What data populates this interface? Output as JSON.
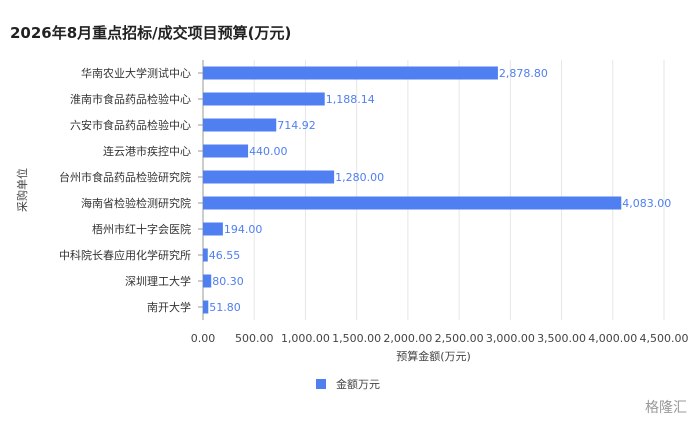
{
  "chart_data": {
    "type": "bar",
    "orientation": "horizontal",
    "title": "2026年8月重点招标/成交项目预算(万元)",
    "xlabel": "预算金额(万元)",
    "ylabel": "采购单位",
    "categories": [
      "华南农业大学测试中心",
      "淮南市食品药品检验中心",
      "六安市食品药品检验中心",
      "连云港市疾控中心",
      "台州市食品药品检验研究院",
      "海南省检验检测研究院",
      "梧州市红十字会医院",
      "中科院长春应用化学研究所",
      "深圳理工大学",
      "南开大学"
    ],
    "series": [
      {
        "name": "金额万元",
        "values": [
          2878.8,
          1188.14,
          714.92,
          440.0,
          1280.0,
          4083.0,
          194.0,
          46.55,
          80.3,
          51.8
        ],
        "labels": [
          "2,878.80",
          "1,188.14",
          "714.92",
          "440.00",
          "1,280.00",
          "4,083.00",
          "194.00",
          "46.55",
          "80.30",
          "51.80"
        ]
      }
    ],
    "xlim": [
      0,
      4500
    ],
    "xticks": [
      0,
      500,
      1000,
      1500,
      2000,
      2500,
      3000,
      3500,
      4000,
      4500
    ],
    "xtick_labels": [
      "0.00",
      "500.00",
      "1,000.00",
      "1,500.00",
      "2,000.00",
      "2,500.00",
      "3,000.00",
      "3,500.00",
      "4,000.00",
      "4,500.00"
    ],
    "grid": true,
    "legend_position": "bottom",
    "bar_color": "#4f7ff0"
  },
  "watermark": "格隆汇"
}
